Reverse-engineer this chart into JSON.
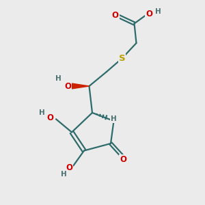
{
  "bg_color": "#ebebeb",
  "bond_color": "#2e6b6b",
  "atom_O": "#cc0000",
  "atom_H": "#4a7070",
  "atom_S": "#b8a000",
  "figsize": [
    3.0,
    3.0
  ],
  "dpi": 100,
  "xlim": [
    0,
    10
  ],
  "ylim": [
    0,
    10
  ]
}
